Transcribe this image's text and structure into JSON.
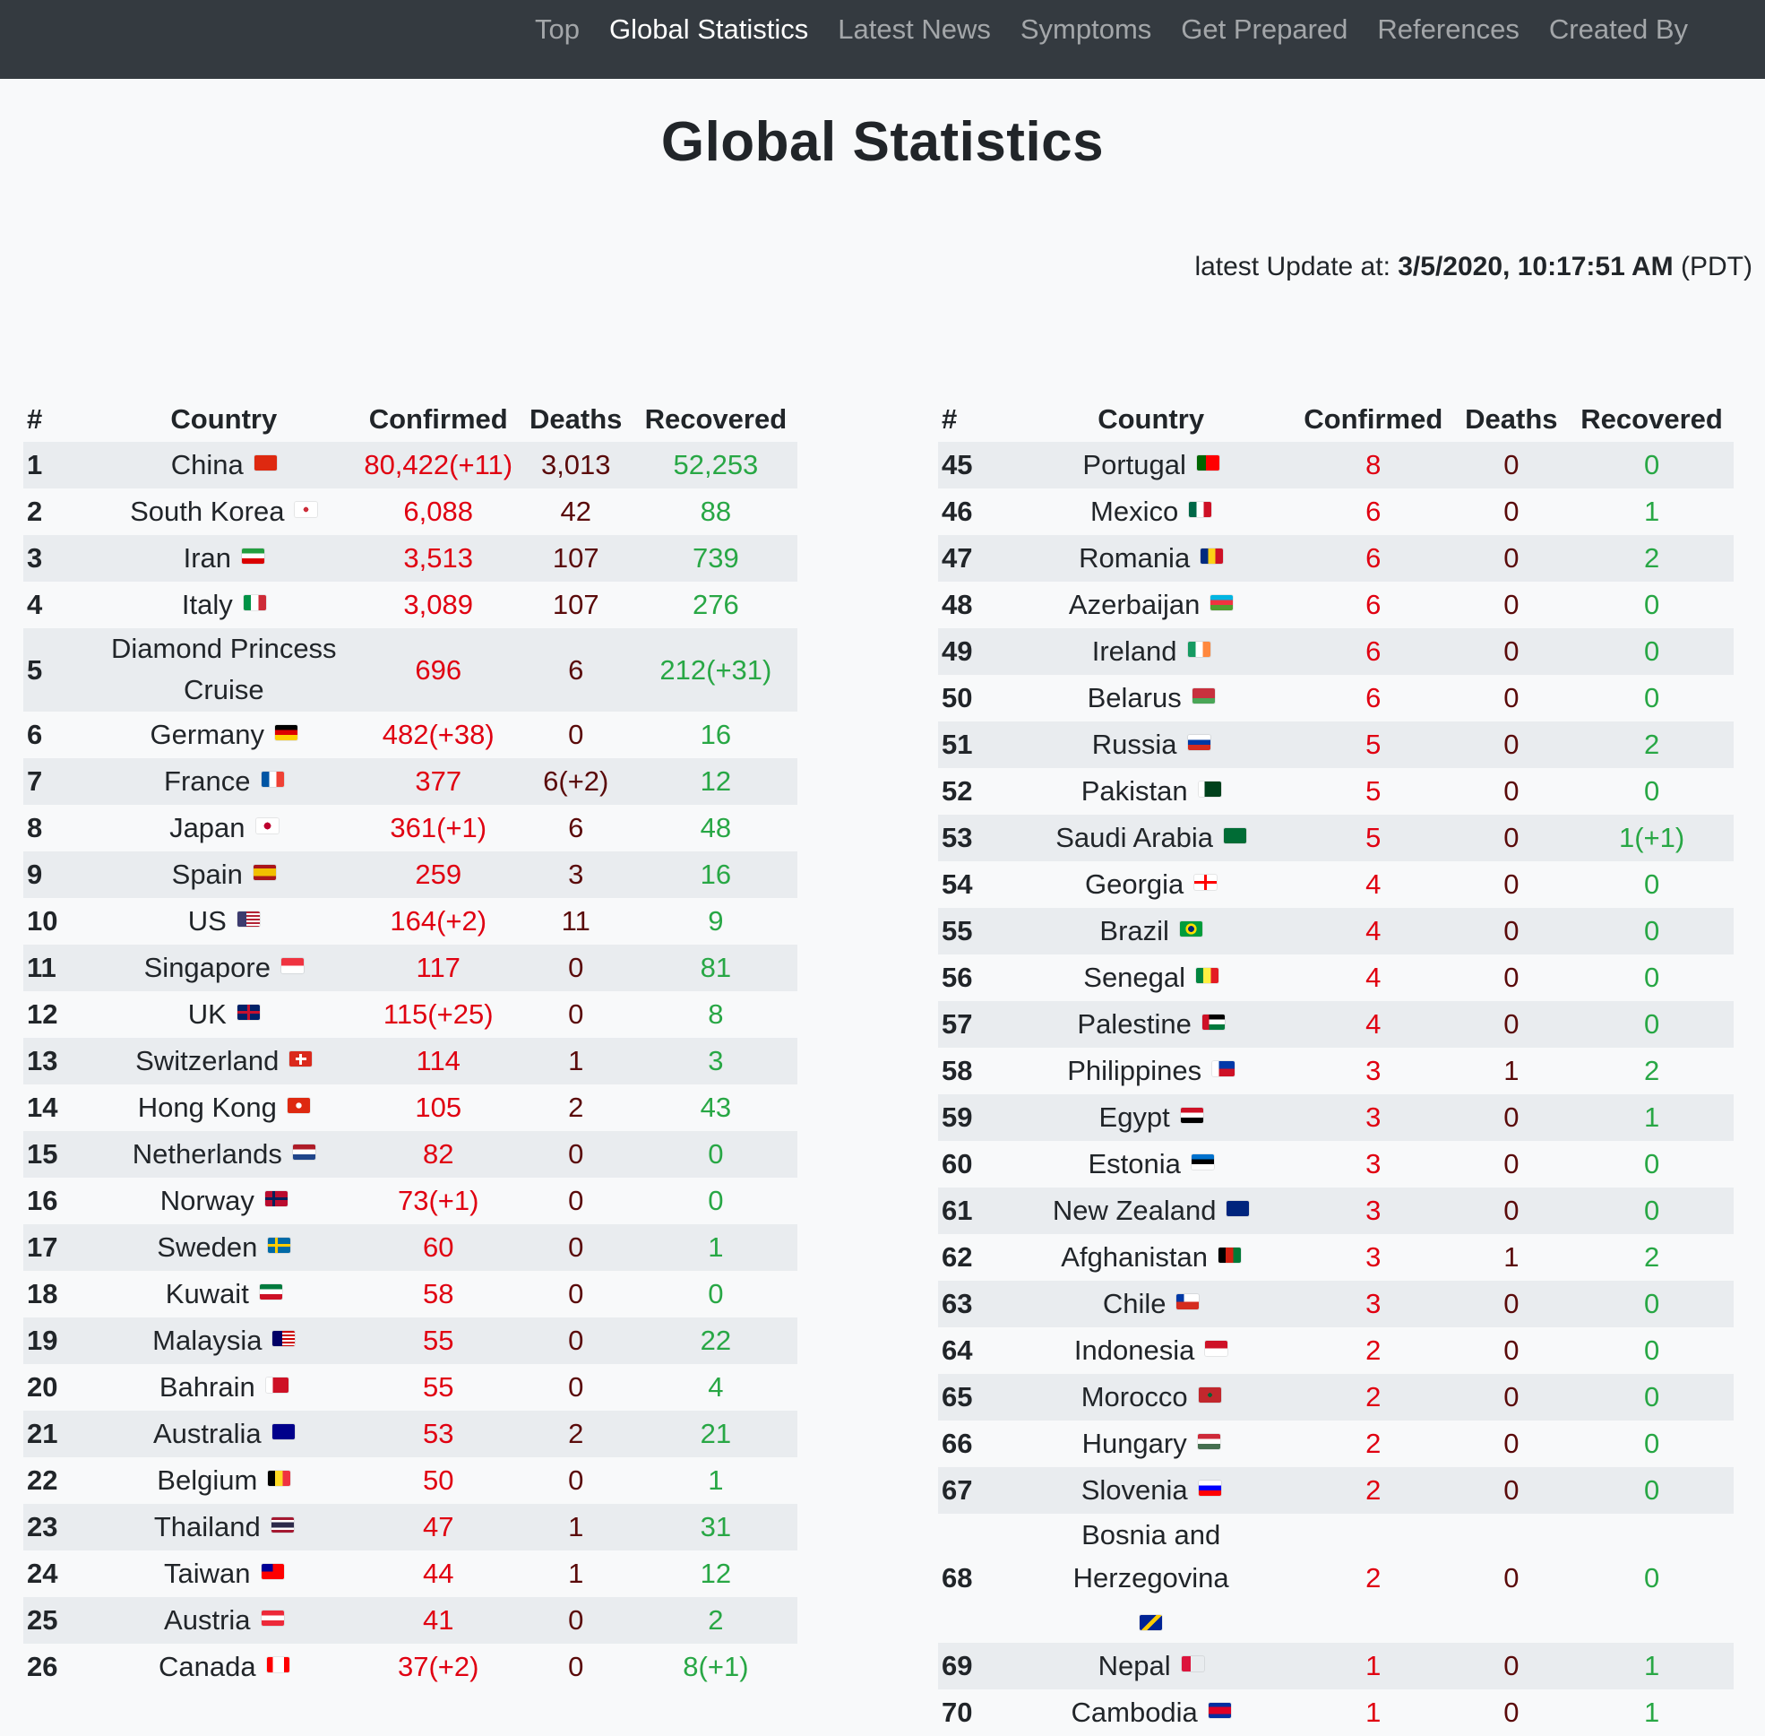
{
  "nav": {
    "items": [
      {
        "label": "Top",
        "active": false
      },
      {
        "label": "Global Statistics",
        "active": true
      },
      {
        "label": "Latest News",
        "active": false
      },
      {
        "label": "Symptoms",
        "active": false
      },
      {
        "label": "Get Prepared",
        "active": false
      },
      {
        "label": "References",
        "active": false
      },
      {
        "label": "Created By",
        "active": false
      }
    ]
  },
  "title": "Global Statistics",
  "update": {
    "prefix": "latest Update at: ",
    "timestamp": "3/5/2020, 10:17:51 AM",
    "tz": " (PDT)"
  },
  "columns": [
    "#",
    "Country",
    "Confirmed",
    "Deaths",
    "Recovered"
  ],
  "left_rows": [
    {
      "n": "1",
      "country": "China",
      "confirmed": "80,422(+11)",
      "deaths": "3,013",
      "recovered": "52,253",
      "flag": "china-flag-icon",
      "flag_css": "linear-gradient(#de2910,#de2910)"
    },
    {
      "n": "2",
      "country": "South Korea",
      "confirmed": "6,088",
      "deaths": "42",
      "recovered": "88",
      "flag": "south-korea-flag-icon",
      "flag_css": "radial-gradient(circle at 50% 50%, #cd2e3a 0 18%, #ffffff 19%)"
    },
    {
      "n": "3",
      "country": "Iran",
      "confirmed": "3,513",
      "deaths": "107",
      "recovered": "739",
      "flag": "iran-flag-icon",
      "flag_css": "linear-gradient(#239f40 0 33%, #ffffff 33% 66%, #da0000 66%)"
    },
    {
      "n": "4",
      "country": "Italy",
      "confirmed": "3,089",
      "deaths": "107",
      "recovered": "276",
      "flag": "italy-flag-icon",
      "flag_css": "linear-gradient(90deg,#009246 0 33%,#ffffff 33% 66%,#ce2b37 66%)"
    },
    {
      "n": "5",
      "country": "Diamond Princess Cruise",
      "confirmed": "696",
      "deaths": "6",
      "recovered": "212(+31)",
      "flag": "",
      "flag_css": ""
    },
    {
      "n": "6",
      "country": "Germany",
      "confirmed": "482(+38)",
      "deaths": "0",
      "recovered": "16",
      "flag": "germany-flag-icon",
      "flag_css": "linear-gradient(#000 0 33%,#dd0000 33% 66%,#ffce00 66%)"
    },
    {
      "n": "7",
      "country": "France",
      "confirmed": "377",
      "deaths": "6(+2)",
      "recovered": "12",
      "flag": "france-flag-icon",
      "flag_css": "linear-gradient(90deg,#0055a4 0 33%,#ffffff 33% 66%,#ef4135 66%)"
    },
    {
      "n": "8",
      "country": "Japan",
      "confirmed": "361(+1)",
      "deaths": "6",
      "recovered": "48",
      "flag": "japan-flag-icon",
      "flag_css": "radial-gradient(circle at 50% 50%, #bc002d 0 25%, #ffffff 26%)"
    },
    {
      "n": "9",
      "country": "Spain",
      "confirmed": "259",
      "deaths": "3",
      "recovered": "16",
      "flag": "spain-flag-icon",
      "flag_css": "linear-gradient(#aa151b 0 25%,#f1bf00 25% 75%,#aa151b 75%)"
    },
    {
      "n": "10",
      "country": "US",
      "confirmed": "164(+2)",
      "deaths": "11",
      "recovered": "9",
      "flag": "us-flag-icon",
      "flag_css": "linear-gradient(90deg,#3c3b6e 0 40%,transparent 40%), repeating-linear-gradient(#b22234 0 2px,#ffffff 2px 4px)"
    },
    {
      "n": "11",
      "country": "Singapore",
      "confirmed": "117",
      "deaths": "0",
      "recovered": "81",
      "flag": "singapore-flag-icon",
      "flag_css": "linear-gradient(#ef3340 0 50%,#ffffff 50%)"
    },
    {
      "n": "12",
      "country": "UK",
      "confirmed": "115(+25)",
      "deaths": "0",
      "recovered": "8",
      "flag": "uk-flag-icon",
      "flag_css": "linear-gradient(#c8102e,#c8102e) center/100% 3px no-repeat, linear-gradient(90deg,#c8102e,#c8102e) center/3px 100% no-repeat, #012169"
    },
    {
      "n": "13",
      "country": "Switzerland",
      "confirmed": "114",
      "deaths": "1",
      "recovered": "3",
      "flag": "switzerland-flag-icon",
      "flag_css": "linear-gradient(#fff,#fff) center/12px 3px no-repeat, linear-gradient(#fff,#fff) center/3px 12px no-repeat, #da291c"
    },
    {
      "n": "14",
      "country": "Hong Kong",
      "confirmed": "105",
      "deaths": "2",
      "recovered": "43",
      "flag": "hong-kong-flag-icon",
      "flag_css": "radial-gradient(circle at 50% 50%, #ffffff 0 20%, #de2910 22%)"
    },
    {
      "n": "15",
      "country": "Netherlands",
      "confirmed": "82",
      "deaths": "0",
      "recovered": "0",
      "flag": "netherlands-flag-icon",
      "flag_css": "linear-gradient(#ae1c28 0 33%,#ffffff 33% 66%,#21468b 66%)"
    },
    {
      "n": "16",
      "country": "Norway",
      "confirmed": "73(+1)",
      "deaths": "0",
      "recovered": "0",
      "flag": "norway-flag-icon",
      "flag_css": "linear-gradient(#00205b,#00205b) 40% 50%/100% 3px no-repeat, linear-gradient(90deg,#00205b,#00205b) 35% 50%/3px 100% no-repeat, #ba0c2f"
    },
    {
      "n": "17",
      "country": "Sweden",
      "confirmed": "60",
      "deaths": "0",
      "recovered": "1",
      "flag": "sweden-flag-icon",
      "flag_css": "linear-gradient(#fecc00,#fecc00) 40% 50%/100% 3px no-repeat, linear-gradient(90deg,#fecc00,#fecc00) 35% 50%/3px 100% no-repeat, #006aa7"
    },
    {
      "n": "18",
      "country": "Kuwait",
      "confirmed": "58",
      "deaths": "0",
      "recovered": "0",
      "flag": "kuwait-flag-icon",
      "flag_css": "linear-gradient(#007a3d 0 33%,#ffffff 33% 66%,#ce1126 66%)"
    },
    {
      "n": "19",
      "country": "Malaysia",
      "confirmed": "55",
      "deaths": "0",
      "recovered": "22",
      "flag": "malaysia-flag-icon",
      "flag_css": "linear-gradient(90deg,#010066 0 45%,transparent 45%), repeating-linear-gradient(#cc0001 0 2px,#ffffff 2px 4px)"
    },
    {
      "n": "20",
      "country": "Bahrain",
      "confirmed": "55",
      "deaths": "0",
      "recovered": "4",
      "flag": "bahrain-flag-icon",
      "flag_css": "linear-gradient(90deg,#ffffff 0 30%,#ce1126 30%)"
    },
    {
      "n": "21",
      "country": "Australia",
      "confirmed": "53",
      "deaths": "2",
      "recovered": "21",
      "flag": "australia-flag-icon",
      "flag_css": "linear-gradient(#00008b,#00008b)"
    },
    {
      "n": "22",
      "country": "Belgium",
      "confirmed": "50",
      "deaths": "0",
      "recovered": "1",
      "flag": "belgium-flag-icon",
      "flag_css": "linear-gradient(90deg,#000 0 33%,#fdda24 33% 66%,#ef3340 66%)"
    },
    {
      "n": "23",
      "country": "Thailand",
      "confirmed": "47",
      "deaths": "1",
      "recovered": "31",
      "flag": "thailand-flag-icon",
      "flag_css": "linear-gradient(#a51931 0 17%,#ffffff 17% 33%,#2d2a4a 33% 67%,#ffffff 67% 83%,#a51931 83%)"
    },
    {
      "n": "24",
      "country": "Taiwan",
      "confirmed": "44",
      "deaths": "1",
      "recovered": "12",
      "flag": "taiwan-flag-icon",
      "flag_css": "linear-gradient(#000095,#000095) 0 0/50% 50% no-repeat, #fe0000"
    },
    {
      "n": "25",
      "country": "Austria",
      "confirmed": "41",
      "deaths": "0",
      "recovered": "2",
      "flag": "austria-flag-icon",
      "flag_css": "linear-gradient(#ed2939 0 33%,#ffffff 33% 66%,#ed2939 66%)"
    },
    {
      "n": "26",
      "country": "Canada",
      "confirmed": "37(+2)",
      "deaths": "0",
      "recovered": "8(+1)",
      "flag": "canada-flag-icon",
      "flag_css": "linear-gradient(90deg,#ff0000 0 25%,#ffffff 25% 75%,#ff0000 75%)"
    }
  ],
  "right_rows": [
    {
      "n": "45",
      "country": "Portugal",
      "confirmed": "8",
      "deaths": "0",
      "recovered": "0",
      "flag": "portugal-flag-icon",
      "flag_css": "linear-gradient(90deg,#006600 0 40%,#ff0000 40%)"
    },
    {
      "n": "46",
      "country": "Mexico",
      "confirmed": "6",
      "deaths": "0",
      "recovered": "1",
      "flag": "mexico-flag-icon",
      "flag_css": "linear-gradient(90deg,#006847 0 33%,#ffffff 33% 66%,#ce1126 66%)"
    },
    {
      "n": "47",
      "country": "Romania",
      "confirmed": "6",
      "deaths": "0",
      "recovered": "2",
      "flag": "romania-flag-icon",
      "flag_css": "linear-gradient(90deg,#002b7f 0 33%,#fcd116 33% 66%,#ce1126 66%)"
    },
    {
      "n": "48",
      "country": "Azerbaijan",
      "confirmed": "6",
      "deaths": "0",
      "recovered": "0",
      "flag": "azerbaijan-flag-icon",
      "flag_css": "linear-gradient(#00b5e2 0 33%,#ef3340 33% 66%,#509e2f 66%)"
    },
    {
      "n": "49",
      "country": "Ireland",
      "confirmed": "6",
      "deaths": "0",
      "recovered": "0",
      "flag": "ireland-flag-icon",
      "flag_css": "linear-gradient(90deg,#169b62 0 33%,#ffffff 33% 66%,#ff883e 66%)"
    },
    {
      "n": "50",
      "country": "Belarus",
      "confirmed": "6",
      "deaths": "0",
      "recovered": "0",
      "flag": "belarus-flag-icon",
      "flag_css": "linear-gradient(#c8313e 0 66%,#4aa657 66%)"
    },
    {
      "n": "51",
      "country": "Russia",
      "confirmed": "5",
      "deaths": "0",
      "recovered": "2",
      "flag": "russia-flag-icon",
      "flag_css": "linear-gradient(#ffffff 0 33%,#0039a6 33% 66%,#d52b1e 66%)"
    },
    {
      "n": "52",
      "country": "Pakistan",
      "confirmed": "5",
      "deaths": "0",
      "recovered": "0",
      "flag": "pakistan-flag-icon",
      "flag_css": "linear-gradient(90deg,#ffffff 0 25%,#01411c 25%)"
    },
    {
      "n": "53",
      "country": "Saudi Arabia",
      "confirmed": "5",
      "deaths": "0",
      "recovered": "1(+1)",
      "flag": "saudi-arabia-flag-icon",
      "flag_css": "linear-gradient(#006c35,#006c35)"
    },
    {
      "n": "54",
      "country": "Georgia",
      "confirmed": "4",
      "deaths": "0",
      "recovered": "0",
      "flag": "georgia-flag-icon",
      "flag_css": "linear-gradient(#ff0000,#ff0000) center/100% 3px no-repeat, linear-gradient(90deg,#ff0000,#ff0000) center/3px 100% no-repeat, #ffffff"
    },
    {
      "n": "55",
      "country": "Brazil",
      "confirmed": "4",
      "deaths": "0",
      "recovered": "0",
      "flag": "brazil-flag-icon",
      "flag_css": "radial-gradient(circle at 50% 50%, #002776 0 22%, #fedf00 23% 40%, #009c3b 41%)"
    },
    {
      "n": "56",
      "country": "Senegal",
      "confirmed": "4",
      "deaths": "0",
      "recovered": "0",
      "flag": "senegal-flag-icon",
      "flag_css": "linear-gradient(90deg,#00853f 0 33%,#fdef42 33% 66%,#e31b23 66%)"
    },
    {
      "n": "57",
      "country": "Palestine",
      "confirmed": "4",
      "deaths": "0",
      "recovered": "0",
      "flag": "palestine-flag-icon",
      "flag_css": "linear-gradient(90deg,#ce1126 0 30%,transparent 30%), linear-gradient(#000 0 33%,#ffffff 33% 66%,#007a3d 66%)"
    },
    {
      "n": "58",
      "country": "Philippines",
      "confirmed": "3",
      "deaths": "1",
      "recovered": "2",
      "flag": "philippines-flag-icon",
      "flag_css": "linear-gradient(90deg,#ffffff 0 30%,transparent 30%), linear-gradient(#0038a8 0 50%,#ce1126 50%)"
    },
    {
      "n": "59",
      "country": "Egypt",
      "confirmed": "3",
      "deaths": "0",
      "recovered": "1",
      "flag": "egypt-flag-icon",
      "flag_css": "linear-gradient(#ce1126 0 33%,#ffffff 33% 66%,#000 66%)"
    },
    {
      "n": "60",
      "country": "Estonia",
      "confirmed": "3",
      "deaths": "0",
      "recovered": "0",
      "flag": "estonia-flag-icon",
      "flag_css": "linear-gradient(#0072ce 0 33%,#000 33% 66%,#ffffff 66%)"
    },
    {
      "n": "61",
      "country": "New Zealand",
      "confirmed": "3",
      "deaths": "0",
      "recovered": "0",
      "flag": "new-zealand-flag-icon",
      "flag_css": "linear-gradient(#00247d,#00247d)"
    },
    {
      "n": "62",
      "country": "Afghanistan",
      "confirmed": "3",
      "deaths": "1",
      "recovered": "2",
      "flag": "afghanistan-flag-icon",
      "flag_css": "linear-gradient(90deg,#000 0 33%,#d32011 33% 66%,#007a36 66%)"
    },
    {
      "n": "63",
      "country": "Chile",
      "confirmed": "3",
      "deaths": "0",
      "recovered": "0",
      "flag": "chile-flag-icon",
      "flag_css": "linear-gradient(90deg,#0039a6 0 35%,#ffffff 35%) 0 0/100% 50% no-repeat, linear-gradient(#d52b1e,#d52b1e)"
    },
    {
      "n": "64",
      "country": "Indonesia",
      "confirmed": "2",
      "deaths": "0",
      "recovered": "0",
      "flag": "indonesia-flag-icon",
      "flag_css": "linear-gradient(#ce1126 0 50%,#ffffff 50%)"
    },
    {
      "n": "65",
      "country": "Morocco",
      "confirmed": "2",
      "deaths": "0",
      "recovered": "0",
      "flag": "morocco-flag-icon",
      "flag_css": "radial-gradient(circle at 50% 50%, #006233 0 15%, #c1272d 16%)"
    },
    {
      "n": "66",
      "country": "Hungary",
      "confirmed": "2",
      "deaths": "0",
      "recovered": "0",
      "flag": "hungary-flag-icon",
      "flag_css": "linear-gradient(#ce2939 0 33%,#ffffff 33% 66%,#477050 66%)"
    },
    {
      "n": "67",
      "country": "Slovenia",
      "confirmed": "2",
      "deaths": "0",
      "recovered": "0",
      "flag": "slovenia-flag-icon",
      "flag_css": "linear-gradient(#ffffff 0 33%,#0000ff 33% 66%,#ff0000 66%)"
    },
    {
      "n": "68",
      "country": "Bosnia and Herzegovina",
      "confirmed": "2",
      "deaths": "0",
      "recovered": "0",
      "flag": "bosnia-flag-icon",
      "flag_css": "linear-gradient(135deg,#002395 0 45%,#fecb00 45% 60%,#002395 60%)",
      "wrap_flag": true
    },
    {
      "n": "69",
      "country": "Nepal",
      "confirmed": "1",
      "deaths": "0",
      "recovered": "1",
      "flag": "nepal-flag-icon",
      "flag_css": "linear-gradient(#dc143c,#dc143c) 0 0/40% 100% no-repeat, transparent"
    },
    {
      "n": "70",
      "country": "Cambodia",
      "confirmed": "1",
      "deaths": "0",
      "recovered": "1",
      "flag": "cambodia-flag-icon",
      "flag_css": "linear-gradient(#032ea1 0 25%,#e00025 25% 75%,#032ea1 75%)"
    }
  ]
}
